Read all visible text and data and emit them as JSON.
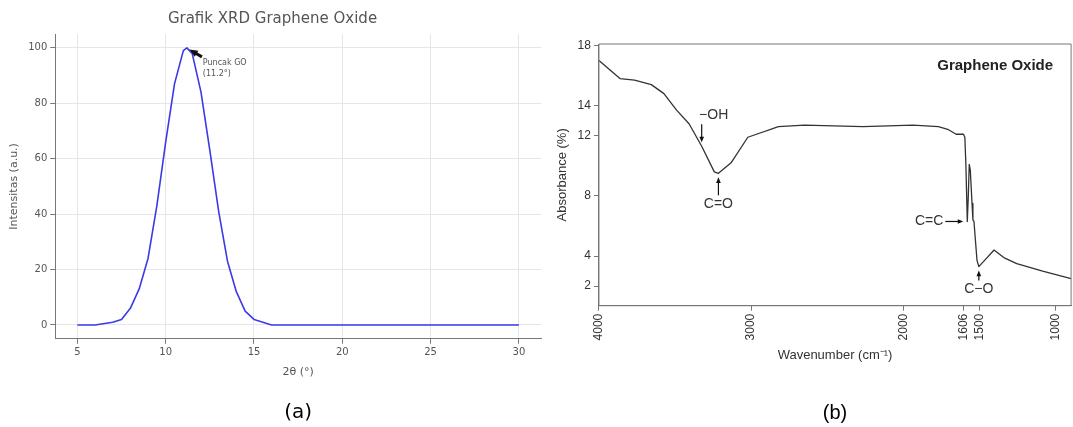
{
  "chart_data": [
    {
      "type": "line",
      "title": "Grafik XRD Graphene Oxide",
      "xlabel": "2θ (°)",
      "ylabel": "Intensitas (a.u.)",
      "x": [
        5,
        6,
        7,
        7.5,
        8,
        8.5,
        9,
        9.5,
        10,
        10.5,
        11,
        11.2,
        11.5,
        12,
        12.5,
        13,
        13.5,
        14,
        14.5,
        15,
        15.5,
        16,
        17,
        20,
        25,
        30
      ],
      "series": [
        {
          "color": "#3a3ae6",
          "values": [
            0,
            0,
            1,
            2,
            6,
            13,
            24,
            43,
            66,
            87,
            99,
            100,
            98,
            84,
            63,
            41,
            23,
            12,
            5,
            2,
            1,
            0,
            0,
            0,
            0,
            0
          ]
        }
      ],
      "xlim": [
        3.75,
        31.25
      ],
      "ylim": [
        -5,
        105
      ],
      "xticks": [
        5,
        10,
        15,
        20,
        25,
        30
      ],
      "yticks": [
        0,
        20,
        40,
        60,
        80,
        100
      ],
      "grid": true,
      "annotations": [
        {
          "text": "Puncak GO\n(11.2°)",
          "x": 11.2,
          "y": 100
        },
        "(a)"
      ]
    },
    {
      "type": "line",
      "title": "Graphene Oxide",
      "xlabel": "Wavenumber (cm⁻¹)",
      "ylabel": "Absorbance (%)",
      "x": [
        4000,
        3931,
        3862,
        3766,
        3656,
        3573,
        3490,
        3408,
        3325,
        3242,
        3215,
        3132,
        3022,
        2821,
        2650,
        2265,
        1937,
        1770,
        1703,
        1653,
        1605,
        1596,
        1589,
        1580,
        1574,
        1567,
        1560,
        1549,
        1543,
        1536,
        1527,
        1516,
        1504,
        1468,
        1404,
        1340,
        1255,
        1085,
        898
      ],
      "series": [
        {
          "color": "#333333",
          "values": [
            17.0,
            16.4,
            15.8,
            15.7,
            15.4,
            14.8,
            13.7,
            12.8,
            11.3,
            9.6,
            9.5,
            10.2,
            11.9,
            12.6,
            12.7,
            12.6,
            12.7,
            12.6,
            12.4,
            12.1,
            12.1,
            11.9,
            10.0,
            6.3,
            7.8,
            10.1,
            9.7,
            7.5,
            6.4,
            6.3,
            5.1,
            3.7,
            3.3,
            3.7,
            4.4,
            3.9,
            3.5,
            3.0,
            2.5
          ]
        }
      ],
      "xlim": [
        4000,
        898
      ],
      "ylim": [
        0.7,
        18.1
      ],
      "xticks": [
        4000,
        3000,
        2000,
        1606,
        1500,
        1000
      ],
      "yticks": [
        2,
        4,
        8,
        12,
        14,
        18
      ],
      "annotations": [
        {
          "text": "−OH",
          "x": 3325,
          "y": 11.3
        },
        {
          "text": "C=O",
          "x": 3215,
          "y": 9.5
        },
        {
          "text": "C=C",
          "x": 1580,
          "y": 6.3
        },
        {
          "text": "C−O",
          "x": 1504,
          "y": 3.3
        },
        "(b)"
      ]
    }
  ]
}
